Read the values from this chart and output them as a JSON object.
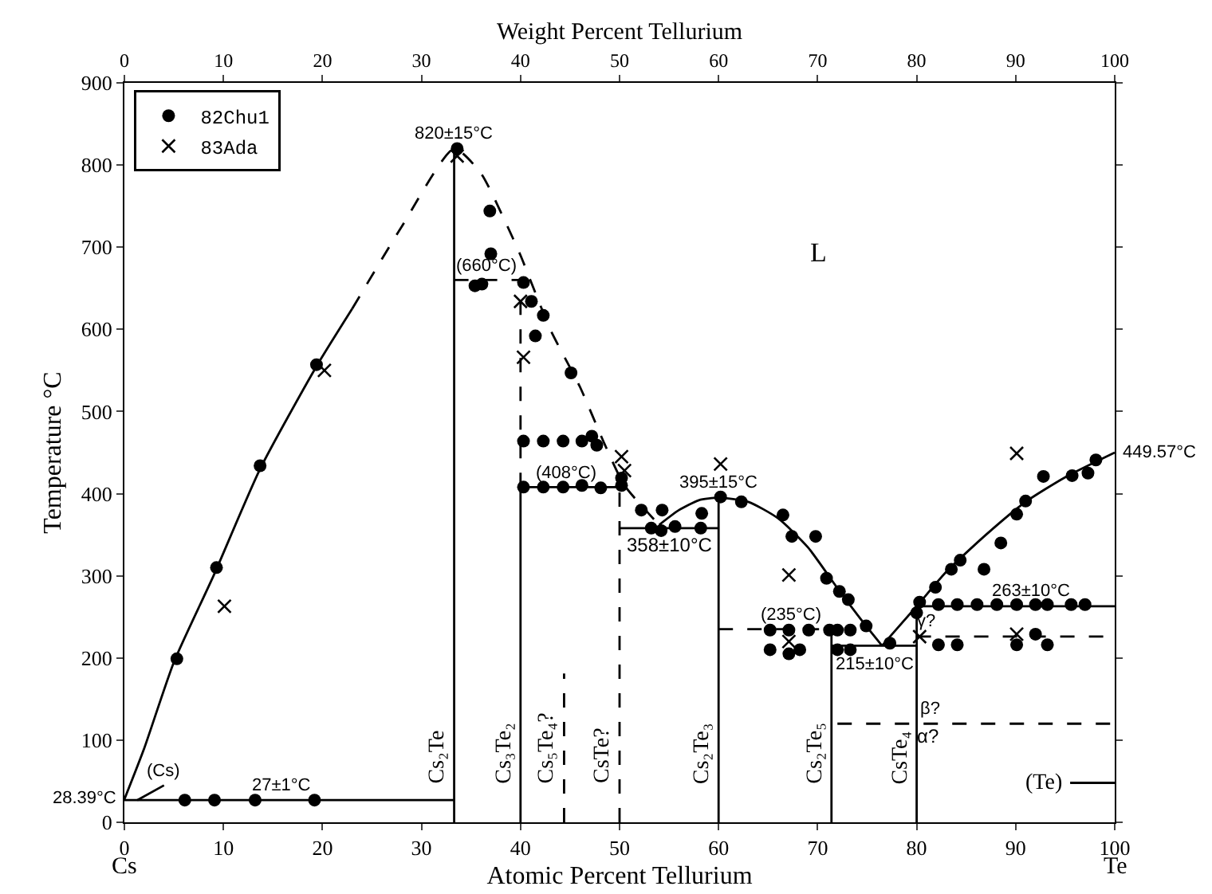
{
  "chart_data": {
    "type": "scatter",
    "xlabel": "Atomic Percent Tellurium",
    "x2label": "Weight Percent Tellurium",
    "ylabel": "Temperature °C",
    "xlim": [
      0,
      100
    ],
    "xticks": [
      0,
      10,
      20,
      30,
      40,
      50,
      60,
      70,
      80,
      90,
      100
    ],
    "x2lim": [
      0,
      100
    ],
    "x2ticks": [
      0,
      10,
      20,
      30,
      40,
      50,
      60,
      70,
      80,
      90,
      100
    ],
    "ylim": [
      0,
      900
    ],
    "yticks": [
      0,
      100,
      200,
      300,
      400,
      500,
      600,
      700,
      800,
      900
    ],
    "grid": false,
    "legend": "top left",
    "series": [
      {
        "type": "scatter",
        "name": "82Chu1",
        "marker": "circle",
        "color": "#000000",
        "x": [
          33.6,
          36.9,
          37.0,
          35.4,
          36.1,
          40.3,
          41.1,
          42.3,
          41.5,
          45.1,
          40.3,
          42.3,
          44.3,
          46.2,
          47.2,
          47.7,
          40.3,
          42.3,
          44.3,
          46.2,
          48.1,
          50.2,
          50.2,
          52.2,
          54.3,
          53.2,
          54.2,
          55.6,
          58.2,
          58.3,
          60.2,
          62.3,
          66.5,
          67.4,
          69.8,
          70.9,
          72.2,
          73.1,
          74.9,
          77.3,
          65.2,
          67.1,
          69.1,
          71.2,
          72.0,
          73.3,
          65.2,
          67.1,
          68.2,
          72.0,
          73.3,
          80.0,
          80.3,
          82.2,
          84.1,
          86.1,
          88.1,
          90.1,
          92.0,
          93.2,
          95.6,
          97.0,
          82.2,
          84.1,
          90.1,
          93.2,
          92.0,
          81.9,
          83.5,
          84.4,
          86.8,
          88.5,
          90.1,
          91.0,
          92.8,
          95.7,
          97.3,
          98.1,
          19.4,
          13.7,
          9.3,
          5.3,
          6.1,
          9.1,
          13.2,
          19.2
        ],
        "values": [
          820,
          744,
          692,
          653,
          655,
          657,
          634,
          617,
          592,
          547,
          464,
          464,
          464,
          464,
          470,
          459,
          408,
          408,
          408,
          410,
          407,
          419,
          410,
          380,
          380,
          358,
          355,
          360,
          358,
          376,
          396,
          390,
          374,
          348,
          348,
          297,
          281,
          271,
          239,
          218,
          234,
          234,
          234,
          234,
          234,
          234,
          210,
          205,
          210,
          210,
          210,
          255,
          268,
          265,
          265,
          265,
          265,
          265,
          265,
          265,
          265,
          265,
          216,
          216,
          216,
          216,
          229,
          286,
          308,
          319,
          308,
          340,
          375,
          391,
          421,
          422,
          425,
          441,
          557,
          434,
          310,
          199,
          27,
          27,
          27,
          27
        ]
      },
      {
        "type": "scatter",
        "name": "83Ada",
        "marker": "cross",
        "color": "#000000",
        "x": [
          33.6,
          40.0,
          40.3,
          20.2,
          10.1,
          50.2,
          50.5,
          60.2,
          67.1,
          67.1,
          80.3,
          90.1,
          90.1
        ],
        "values": [
          811,
          634,
          566,
          550,
          263,
          445,
          428,
          436,
          301,
          220,
          226,
          449,
          229
        ]
      },
      {
        "type": "line",
        "line_style": "solid",
        "color": "#000000",
        "x": [
          0,
          2,
          5,
          9,
          13.7,
          19.4,
          23
        ],
        "values": [
          28,
          90,
          195,
          300,
          430,
          555,
          625
        ]
      },
      {
        "type": "line",
        "line_style": "dashed",
        "color": "#000000",
        "x": [
          23,
          28,
          33.3,
          36,
          38.5,
          40,
          43,
          46,
          48.5,
          50.5,
          54
        ],
        "values": [
          625,
          725,
          820,
          790,
          730,
          690,
          600,
          530,
          460,
          410,
          362
        ]
      },
      {
        "type": "line",
        "line_style": "solid",
        "color": "#000000",
        "x": [
          54,
          56,
          58,
          60,
          63,
          66,
          69,
          72,
          74.5,
          76.5
        ],
        "values": [
          362,
          380,
          392,
          395,
          390,
          370,
          335,
          285,
          245,
          215
        ]
      },
      {
        "type": "line",
        "line_style": "solid",
        "color": "#000000",
        "x": [
          76.5,
          80,
          83,
          87,
          91,
          95,
          100
        ],
        "values": [
          215,
          263,
          305,
          350,
          390,
          420,
          450
        ]
      },
      {
        "type": "line",
        "line_style": "solid",
        "color": "#000000",
        "x": [
          0,
          33.3
        ],
        "values": [
          27,
          27
        ]
      },
      {
        "type": "line",
        "line_style": "dashed",
        "color": "#000000",
        "x": [
          33.3,
          40
        ],
        "values": [
          660,
          660
        ]
      },
      {
        "type": "line",
        "line_style": "solid",
        "color": "#000000",
        "x": [
          40,
          50
        ],
        "values": [
          408,
          408
        ]
      },
      {
        "type": "line",
        "line_style": "solid",
        "color": "#000000",
        "x": [
          50,
          60
        ],
        "values": [
          358,
          358
        ]
      },
      {
        "type": "line",
        "line_style": "dashed",
        "color": "#000000",
        "x": [
          60,
          71.4
        ],
        "values": [
          235,
          235
        ]
      },
      {
        "type": "line",
        "line_style": "solid",
        "color": "#000000",
        "x": [
          71.4,
          80
        ],
        "values": [
          215,
          215
        ]
      },
      {
        "type": "line",
        "line_style": "solid",
        "color": "#000000",
        "x": [
          80,
          100
        ],
        "values": [
          263,
          263
        ]
      },
      {
        "type": "line",
        "line_style": "dashed",
        "color": "#000000",
        "x": [
          80,
          100
        ],
        "values": [
          226,
          226
        ]
      },
      {
        "type": "line",
        "line_style": "dashed",
        "color": "#000000",
        "x": [
          72,
          100
        ],
        "values": [
          120,
          120
        ]
      },
      {
        "type": "line",
        "line_style": "solid",
        "color": "#000000",
        "x": [
          1.3,
          4
        ],
        "values": [
          27,
          45
        ]
      },
      {
        "type": "line",
        "line_style": "solid",
        "color": "#000000",
        "x": [
          95.5,
          100
        ],
        "values": [
          48,
          48
        ]
      },
      {
        "type": "line",
        "name": "Cs₂Te",
        "line_style": "solid",
        "color": "#000000",
        "x": [
          33.3,
          33.3
        ],
        "values": [
          0,
          820
        ]
      },
      {
        "type": "line",
        "name": "Cs₃Te₂",
        "line_style": "solid",
        "color": "#000000",
        "x": [
          40,
          40
        ],
        "values": [
          0,
          408
        ]
      },
      {
        "type": "line",
        "line_style": "dashed",
        "color": "#000000",
        "x": [
          40,
          40
        ],
        "values": [
          408,
          660
        ]
      },
      {
        "type": "line",
        "name": "Cs₅Te₄?",
        "line_style": "dashed",
        "color": "#000000",
        "x": [
          44.4,
          44.4
        ],
        "values": [
          0,
          181
        ]
      },
      {
        "type": "line",
        "name": "CsTe?",
        "line_style": "dashed",
        "color": "#000000",
        "x": [
          50,
          50
        ],
        "values": [
          0,
          408
        ]
      },
      {
        "type": "line",
        "name": "Cs₂Te₃",
        "line_style": "solid",
        "color": "#000000",
        "x": [
          60,
          60
        ],
        "values": [
          0,
          395
        ]
      },
      {
        "type": "line",
        "name": "Cs₂Te₅",
        "line_style": "solid",
        "color": "#000000",
        "x": [
          71.4,
          71.4
        ],
        "values": [
          0,
          235
        ]
      },
      {
        "type": "line",
        "name": "CsTe₄",
        "line_style": "solid",
        "color": "#000000",
        "x": [
          80,
          80
        ],
        "values": [
          0,
          263
        ]
      }
    ],
    "annotations": [
      "Cs",
      "Te",
      "L",
      "358±10°C",
      "215±10°C",
      "α?",
      "(Te)",
      {
        "text": "820±15°C",
        "x": 33.3,
        "y": 820
      },
      {
        "text": "(660°C)",
        "x": 36.6,
        "y": 660
      },
      {
        "text": "(408°C)",
        "x": 44.6,
        "y": 408
      },
      {
        "text": "395±15°C",
        "x": 60,
        "y": 395
      },
      {
        "text": "(235°C)",
        "x": 67.3,
        "y": 235
      },
      {
        "text": "263±10°C",
        "x": 91.5,
        "y": 263
      },
      {
        "text": "449.57°C",
        "x": 100,
        "y": 449.57
      },
      {
        "text": "28.39°C",
        "x": 0,
        "y": 28.39
      },
      {
        "text": "27±1°C",
        "x": 15.8,
        "y": 27
      },
      {
        "text": "(Cs)",
        "x": 4,
        "y": 45
      },
      {
        "text": "γ?",
        "x": 81.0,
        "y": 226
      },
      {
        "text": "β?",
        "x": 81.3,
        "y": 120
      }
    ]
  }
}
